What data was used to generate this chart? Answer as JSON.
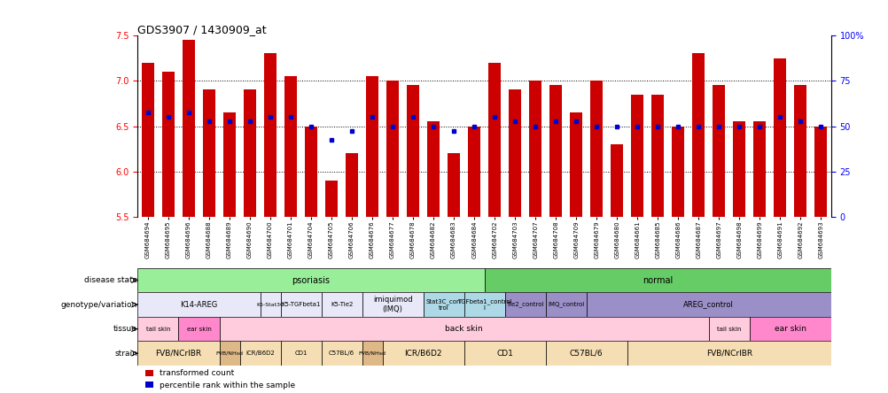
{
  "title": "GDS3907 / 1430909_at",
  "ylim": [
    5.5,
    7.5
  ],
  "yticks_left": [
    5.5,
    6.0,
    6.5,
    7.0,
    7.5
  ],
  "samples": [
    "GSM684694",
    "GSM684695",
    "GSM684696",
    "GSM684688",
    "GSM684689",
    "GSM684690",
    "GSM684700",
    "GSM684701",
    "GSM684704",
    "GSM684705",
    "GSM684706",
    "GSM684676",
    "GSM684677",
    "GSM684678",
    "GSM684682",
    "GSM684683",
    "GSM684684",
    "GSM684702",
    "GSM684703",
    "GSM684707",
    "GSM684708",
    "GSM684709",
    "GSM684679",
    "GSM684680",
    "GSM684661",
    "GSM684685",
    "GSM684686",
    "GSM684687",
    "GSM684697",
    "GSM684698",
    "GSM684699",
    "GSM684691",
    "GSM684692",
    "GSM684693"
  ],
  "bar_values": [
    7.2,
    7.1,
    7.45,
    6.9,
    6.65,
    6.9,
    7.3,
    7.05,
    6.5,
    5.9,
    6.2,
    7.05,
    7.0,
    6.95,
    6.55,
    6.2,
    6.5,
    7.2,
    6.9,
    7.0,
    6.95,
    6.65,
    7.0,
    6.3,
    6.85,
    6.85,
    6.5,
    7.3,
    6.95,
    6.55,
    6.55,
    7.25,
    6.95,
    6.5
  ],
  "percentile_values": [
    6.65,
    6.6,
    6.65,
    6.55,
    6.55,
    6.55,
    6.6,
    6.6,
    6.5,
    6.35,
    6.45,
    6.6,
    6.5,
    6.6,
    6.5,
    6.45,
    6.5,
    6.6,
    6.55,
    6.5,
    6.55,
    6.55,
    6.5,
    6.5,
    6.5,
    6.5,
    6.5,
    6.5,
    6.5,
    6.5,
    6.5,
    6.6,
    6.55,
    6.5
  ],
  "bar_color": "#CC0000",
  "percentile_color": "#0000CC",
  "baseline": 5.5,
  "disease_groups": [
    {
      "label": "psoriasis",
      "start": 0,
      "end": 17,
      "color": "#99EE99"
    },
    {
      "label": "normal",
      "start": 17,
      "end": 34,
      "color": "#66CC66"
    }
  ],
  "genotype_groups": [
    {
      "label": "K14-AREG",
      "start": 0,
      "end": 6,
      "color": "#E8E8F8"
    },
    {
      "label": "K5-Stat3C",
      "start": 6,
      "end": 7,
      "color": "#E8E8F8"
    },
    {
      "label": "K5-TGFbeta1",
      "start": 7,
      "end": 9,
      "color": "#E8E8F8"
    },
    {
      "label": "K5-Tie2",
      "start": 9,
      "end": 11,
      "color": "#E8E8F8"
    },
    {
      "label": "imiquimod\n(IMQ)",
      "start": 11,
      "end": 14,
      "color": "#E8E8F8"
    },
    {
      "label": "Stat3C_con\ntrol",
      "start": 14,
      "end": 16,
      "color": "#ADD8E6"
    },
    {
      "label": "TGFbeta1_control\nl",
      "start": 16,
      "end": 18,
      "color": "#ADD8E6"
    },
    {
      "label": "Tie2_control",
      "start": 18,
      "end": 20,
      "color": "#9B8FC8"
    },
    {
      "label": "IMQ_control",
      "start": 20,
      "end": 22,
      "color": "#9B8FC8"
    },
    {
      "label": "AREG_control",
      "start": 22,
      "end": 34,
      "color": "#9B8FC8"
    }
  ],
  "tissue_groups": [
    {
      "label": "tail skin",
      "start": 0,
      "end": 2,
      "color": "#FFCCDD"
    },
    {
      "label": "ear skin",
      "start": 2,
      "end": 4,
      "color": "#FF88CC"
    },
    {
      "label": "back skin",
      "start": 4,
      "end": 28,
      "color": "#FFCCDD"
    },
    {
      "label": "tail skin",
      "start": 28,
      "end": 30,
      "color": "#FFCCDD"
    },
    {
      "label": "ear skin",
      "start": 30,
      "end": 34,
      "color": "#FF88CC"
    }
  ],
  "strain_groups": [
    {
      "label": "FVB/NCrIBR",
      "start": 0,
      "end": 4,
      "color": "#F5DEB3"
    },
    {
      "label": "FVB/NHsd",
      "start": 4,
      "end": 5,
      "color": "#DEB887"
    },
    {
      "label": "ICR/B6D2",
      "start": 5,
      "end": 7,
      "color": "#F5DEB3"
    },
    {
      "label": "CD1",
      "start": 7,
      "end": 9,
      "color": "#F5DEB3"
    },
    {
      "label": "C57BL/6",
      "start": 9,
      "end": 11,
      "color": "#F5DEB3"
    },
    {
      "label": "FVB/NHsd",
      "start": 11,
      "end": 12,
      "color": "#DEB887"
    },
    {
      "label": "ICR/B6D2",
      "start": 12,
      "end": 16,
      "color": "#F5DEB3"
    },
    {
      "label": "CD1",
      "start": 16,
      "end": 20,
      "color": "#F5DEB3"
    },
    {
      "label": "C57BL/6",
      "start": 20,
      "end": 24,
      "color": "#F5DEB3"
    },
    {
      "label": "FVB/NCrIBR",
      "start": 24,
      "end": 34,
      "color": "#F5DEB3"
    }
  ],
  "row_labels": [
    "disease state",
    "genotype/variation",
    "tissue",
    "strain"
  ],
  "background_color": "#FFFFFF"
}
